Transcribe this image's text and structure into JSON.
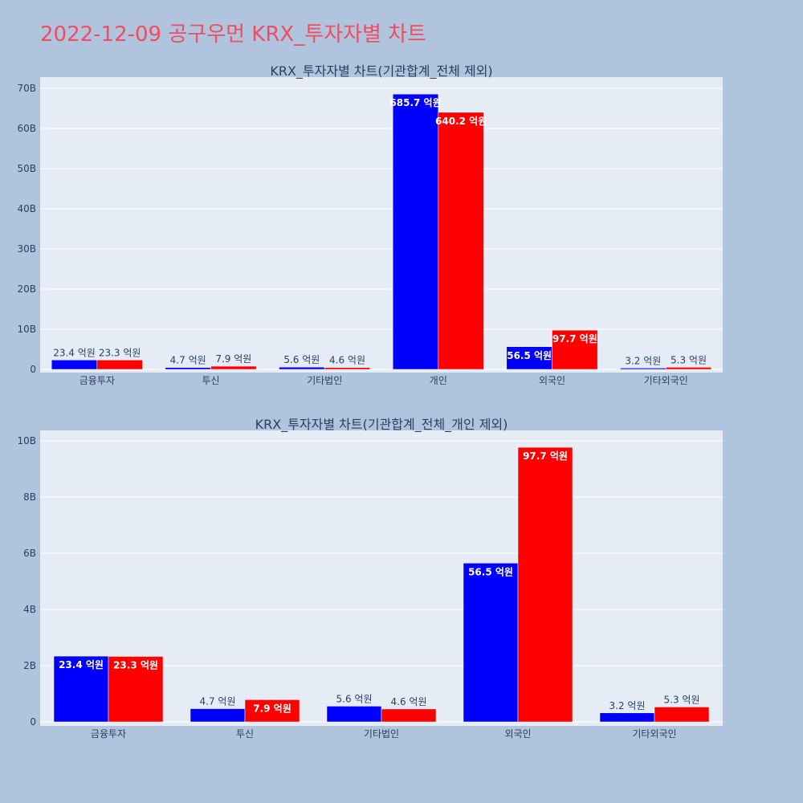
{
  "page_title": "2022-12-09 공구우먼 KRX_투자자별 차트",
  "colors": {
    "series1": "#0000ff",
    "series2": "#ff0000",
    "plot_bg": "#e5ecf6",
    "page_bg": "#b0c4de",
    "title": "#ef4d61"
  },
  "chart_data": [
    {
      "type": "bar",
      "title": "KRX_투자자별 차트(기관합계_전체 제외)",
      "categories": [
        "금융투자",
        "투신",
        "기타법인",
        "개인",
        "외국인",
        "기타외국인"
      ],
      "ylim": [
        0,
        70
      ],
      "yticks": [
        0,
        10,
        20,
        30,
        40,
        50,
        60,
        70
      ],
      "ytick_labels": [
        "0",
        "10B",
        "20B",
        "30B",
        "40B",
        "50B",
        "60B",
        "70B"
      ],
      "grid": true,
      "series": [
        {
          "color": "#0000ff",
          "values": [
            2.34,
            0.47,
            0.56,
            68.57,
            5.65,
            0.32
          ],
          "labels": [
            "23.4 억원",
            "4.7 억원",
            "5.6 억원",
            "685.7 억원",
            "56.5 억원",
            "3.2 억원"
          ]
        },
        {
          "color": "#ff0000",
          "values": [
            2.33,
            0.79,
            0.46,
            64.02,
            9.77,
            0.53
          ],
          "labels": [
            "23.3 억원",
            "7.9 억원",
            "4.6 억원",
            "640.2 억원",
            "97.7 억원",
            "5.3 억원"
          ]
        }
      ]
    },
    {
      "type": "bar",
      "title": "KRX_투자자별 차트(기관합계_전체_개인 제외)",
      "categories": [
        "금융투자",
        "투신",
        "기타법인",
        "외국인",
        "기타외국인"
      ],
      "ylim": [
        0,
        10.4
      ],
      "yticks": [
        0,
        2,
        4,
        6,
        8,
        10
      ],
      "ytick_labels": [
        "0",
        "2B",
        "4B",
        "6B",
        "8B",
        "10B"
      ],
      "grid": true,
      "series": [
        {
          "color": "#0000ff",
          "values": [
            2.34,
            0.47,
            0.56,
            5.65,
            0.32
          ],
          "labels": [
            "23.4 억원",
            "4.7 억원",
            "5.6 억원",
            "56.5 억원",
            "3.2 억원"
          ]
        },
        {
          "color": "#ff0000",
          "values": [
            2.33,
            0.79,
            0.46,
            9.77,
            0.53
          ],
          "labels": [
            "23.3 억원",
            "7.9 억원",
            "4.6 억원",
            "97.7 억원",
            "5.3 억원"
          ]
        }
      ]
    }
  ]
}
